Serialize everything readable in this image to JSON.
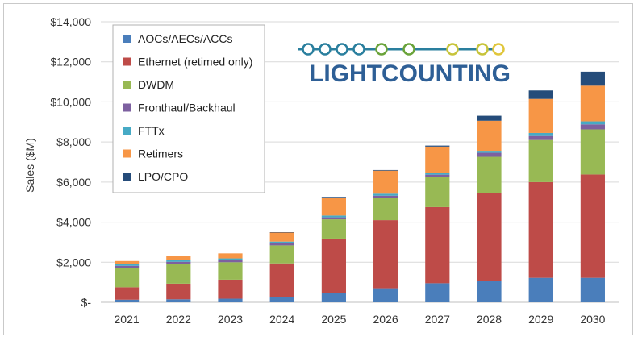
{
  "chart_data": {
    "type": "bar",
    "stacked": true,
    "title": "",
    "xlabel": "",
    "ylabel": "Sales ($M)",
    "ylim": [
      0,
      14000
    ],
    "yticks": [
      0,
      2000,
      4000,
      6000,
      8000,
      10000,
      12000,
      14000
    ],
    "ytick_labels": [
      "$-",
      "$2,000",
      "$4,000",
      "$6,000",
      "$8,000",
      "$10,000",
      "$12,000",
      "$14,000"
    ],
    "grid": true,
    "legend_position": "top-left",
    "categories": [
      "2021",
      "2022",
      "2023",
      "2024",
      "2025",
      "2026",
      "2027",
      "2028",
      "2029",
      "2030"
    ],
    "series": [
      {
        "name": "AOCs/AECs/ACCs",
        "color": "#4a7ebb",
        "values": [
          130,
          150,
          180,
          260,
          480,
          700,
          950,
          1080,
          1220,
          1220
        ]
      },
      {
        "name": "Ethernet (retimed only)",
        "color": "#be4b48",
        "values": [
          620,
          780,
          950,
          1680,
          2700,
          3400,
          3800,
          4380,
          4780,
          5160
        ]
      },
      {
        "name": "DWDM",
        "color": "#98b954",
        "values": [
          950,
          970,
          870,
          900,
          960,
          1100,
          1500,
          1800,
          2100,
          2250
        ]
      },
      {
        "name": "Fronthaul/Backhaul",
        "color": "#7d60a0",
        "values": [
          120,
          120,
          100,
          100,
          100,
          120,
          120,
          200,
          200,
          250
        ]
      },
      {
        "name": "FTTx",
        "color": "#46aac5",
        "values": [
          90,
          90,
          90,
          90,
          90,
          100,
          100,
          100,
          150,
          150
        ]
      },
      {
        "name": "Retimers",
        "color": "#f79646",
        "values": [
          150,
          200,
          250,
          450,
          900,
          1150,
          1300,
          1500,
          1700,
          1780
        ]
      },
      {
        "name": "LPO/CPO",
        "color": "#254c7a",
        "values": [
          0,
          0,
          0,
          20,
          30,
          30,
          50,
          250,
          420,
          700
        ]
      }
    ]
  },
  "logo": {
    "text": "LIGHTCOUNTING"
  }
}
